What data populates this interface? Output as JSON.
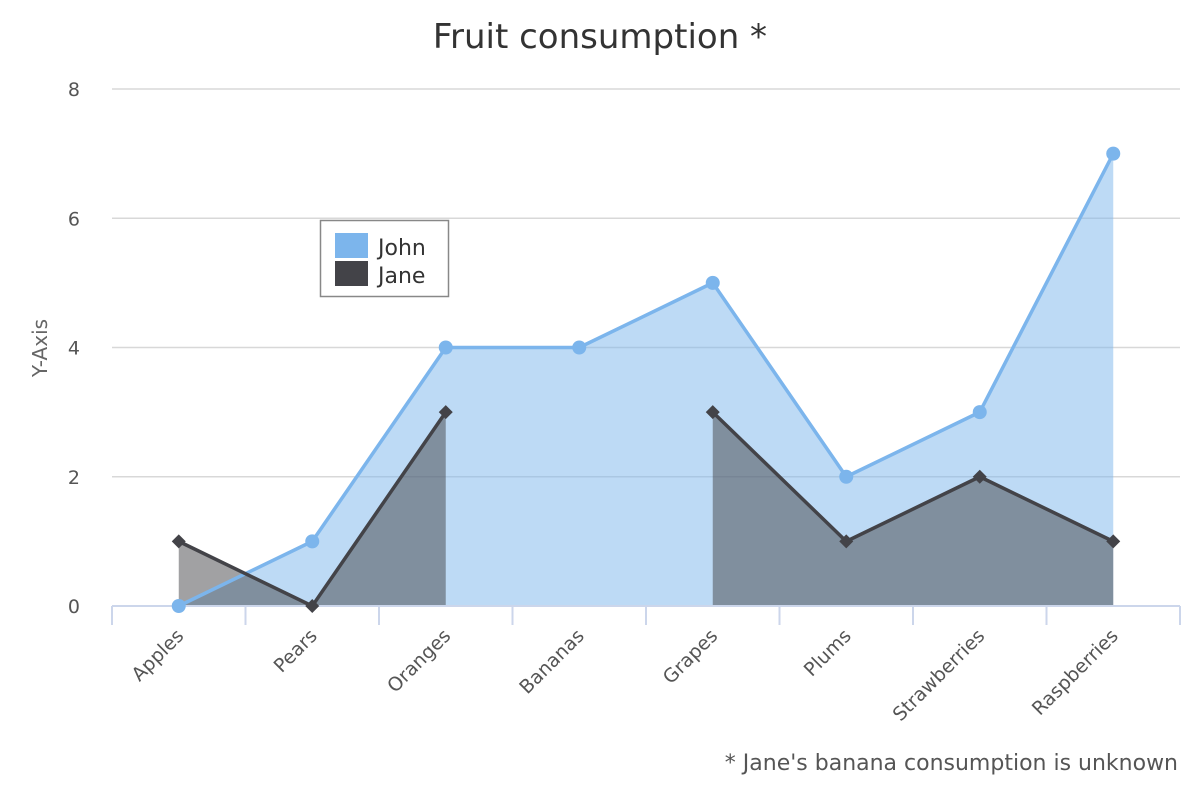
{
  "chart_data": {
    "type": "area",
    "title": "Fruit consumption *",
    "ylabel": "Y-Axis",
    "xlabel": "",
    "caption": "* Jane's banana consumption is unknown",
    "categories": [
      "Apples",
      "Pears",
      "Oranges",
      "Bananas",
      "Grapes",
      "Plums",
      "Strawberries",
      "Raspberries"
    ],
    "ylim": [
      0,
      8
    ],
    "yticks": [
      0,
      2,
      4,
      6,
      8
    ],
    "grid": true,
    "legend_position": "top-left",
    "series": [
      {
        "name": "John",
        "values": [
          0,
          1,
          4,
          4,
          5,
          2,
          3,
          7
        ],
        "color": "#7cb5ec",
        "marker": "circle"
      },
      {
        "name": "Jane",
        "values": [
          1,
          0,
          3,
          null,
          3,
          1,
          2,
          1
        ],
        "color": "#434348",
        "marker": "diamond"
      }
    ]
  }
}
